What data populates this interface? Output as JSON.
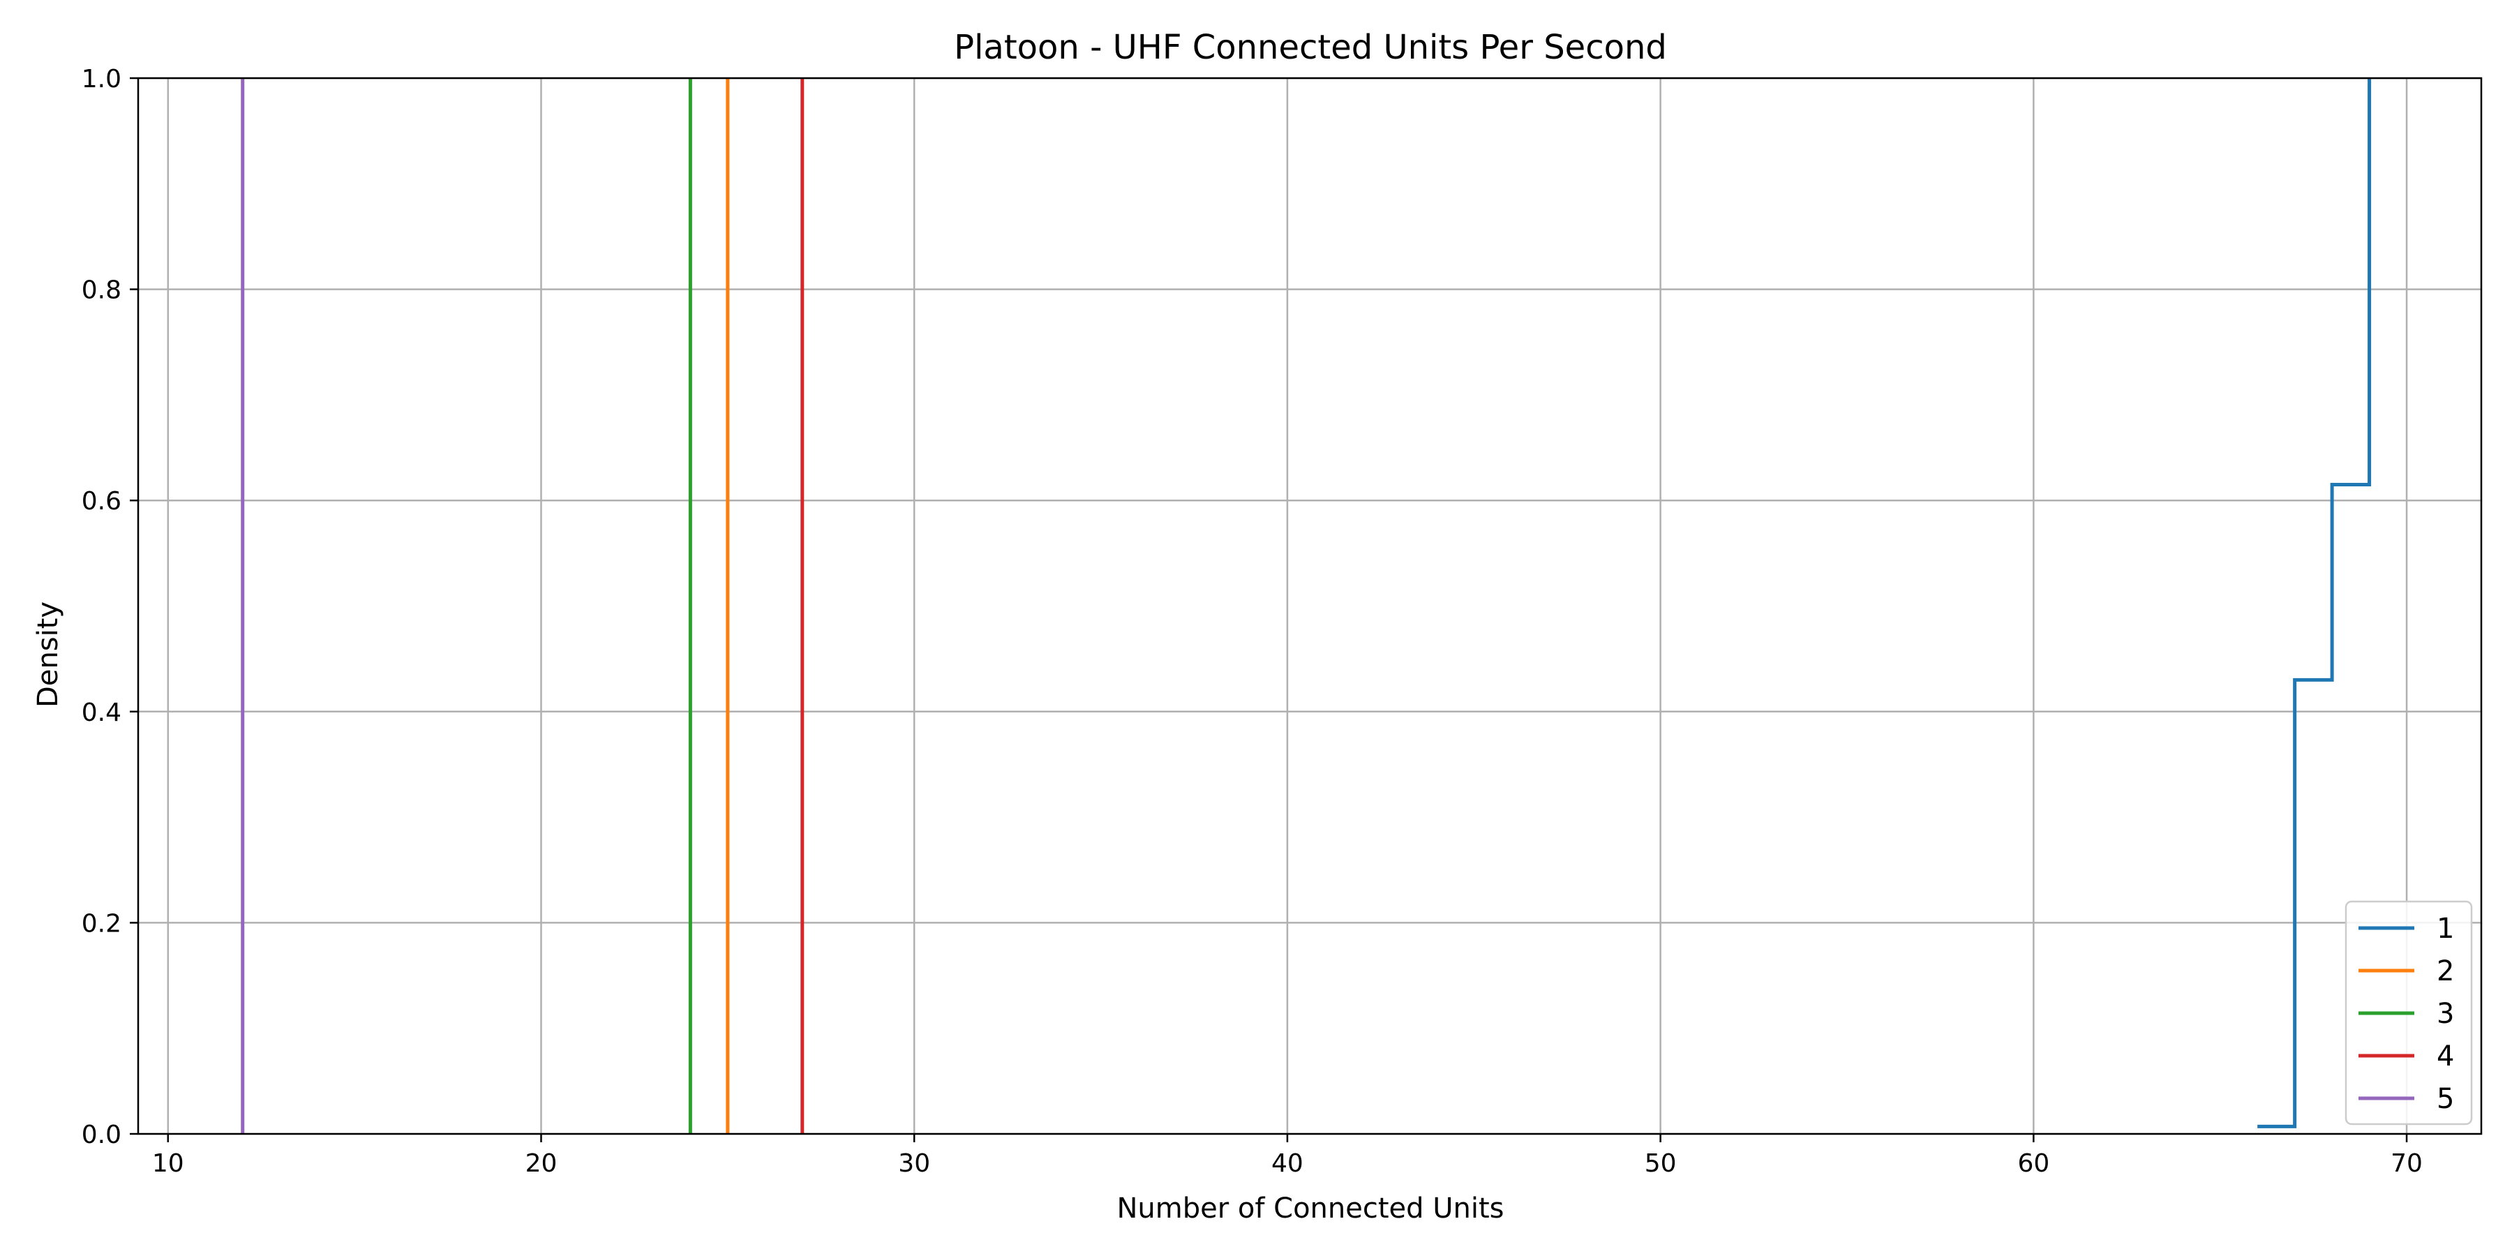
{
  "chart_data": {
    "type": "line",
    "title": "Platoon - UHF Connected Units Per Second",
    "xlabel": "Number of Connected Units",
    "ylabel": "Density",
    "xlim": [
      9.2,
      72
    ],
    "ylim": [
      0,
      1.0
    ],
    "xticks": [
      10,
      20,
      30,
      40,
      50,
      60,
      70
    ],
    "yticks": [
      0.0,
      0.2,
      0.4,
      0.6,
      0.8,
      1.0
    ],
    "xtick_labels": [
      "10",
      "20",
      "30",
      "40",
      "50",
      "60",
      "70"
    ],
    "ytick_labels": [
      "0.0",
      "0.2",
      "0.4",
      "0.6",
      "0.8",
      "1.0"
    ],
    "grid": true,
    "legend_position": "bottom-right",
    "series": [
      {
        "name": "1",
        "color": "#1f77b4",
        "x": [
          66,
          67,
          67,
          68,
          68,
          69,
          69
        ],
        "y": [
          0.007,
          0.007,
          0.43,
          0.43,
          0.615,
          0.615,
          1.0
        ]
      },
      {
        "name": "2",
        "color": "#ff7f0e",
        "x": [
          25,
          25
        ],
        "y": [
          0,
          1.0
        ]
      },
      {
        "name": "3",
        "color": "#2ca02c",
        "x": [
          24,
          24
        ],
        "y": [
          0,
          1.0
        ]
      },
      {
        "name": "4",
        "color": "#d62728",
        "x": [
          27,
          27
        ],
        "y": [
          0,
          1.0
        ]
      },
      {
        "name": "5",
        "color": "#9467bd",
        "x": [
          12,
          12
        ],
        "y": [
          0,
          1.0
        ]
      }
    ]
  }
}
